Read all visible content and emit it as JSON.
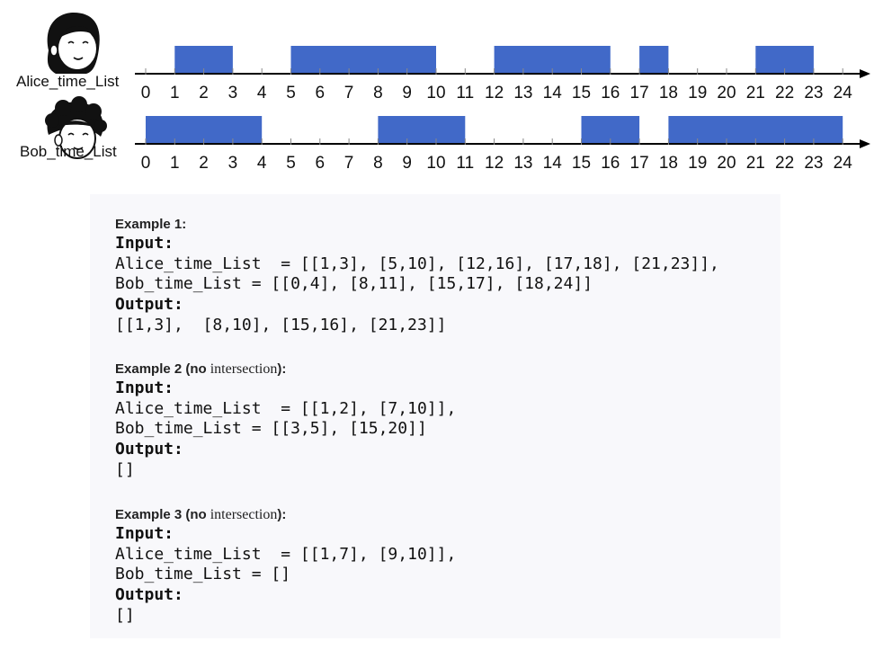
{
  "timeline": {
    "ticks": [
      "0",
      "1",
      "2",
      "3",
      "4",
      "5",
      "6",
      "7",
      "8",
      "9",
      "10",
      "11",
      "12",
      "13",
      "14",
      "15",
      "16",
      "17",
      "18",
      "19",
      "20",
      "21",
      "22",
      "23",
      "24"
    ],
    "bar_color": "#4169c8",
    "rows": [
      {
        "label": "Alice_time_List",
        "avatar": "girl-avatar",
        "intervals": [
          [
            1,
            3
          ],
          [
            5,
            10
          ],
          [
            12,
            16
          ],
          [
            17,
            18
          ],
          [
            21,
            23
          ]
        ]
      },
      {
        "label": "Bob_time_List",
        "avatar": "boy-avatar",
        "intervals": [
          [
            0,
            4
          ],
          [
            8,
            11
          ],
          [
            15,
            17
          ],
          [
            18,
            24
          ]
        ]
      }
    ]
  },
  "examples": [
    {
      "title_bold": "Example 1:",
      "title_mid_bold": "",
      "title_normal": "",
      "title_end_bold": "",
      "input_label": "Input:",
      "alice_line": "Alice_time_List  = [[1,3], [5,10], [12,16], [17,18], [21,23]],",
      "bob_line": "Bob_time_List = [[0,4], [8,11], [15,17], [18,24]]",
      "output_label": "Output:",
      "output_value": "[[1,3],  [8,10], [15,16], [21,23]]"
    },
    {
      "title_bold": "Example 2 (",
      "title_mid_bold": "no",
      "title_normal": " intersection",
      "title_end_bold": "):",
      "input_label": "Input:",
      "alice_line": "Alice_time_List  = [[1,2], [7,10]],",
      "bob_line": "Bob_time_List = [[3,5], [15,20]]",
      "output_label": "Output:",
      "output_value": "[]"
    },
    {
      "title_bold": "Example 3 (",
      "title_mid_bold": "no",
      "title_normal": " intersection",
      "title_end_bold": "):",
      "input_label": "Input:",
      "alice_line": "Alice_time_List  = [[1,7], [9,10]],",
      "bob_line": "Bob_time_List = []",
      "output_label": "Output:",
      "output_value": "[]"
    }
  ]
}
